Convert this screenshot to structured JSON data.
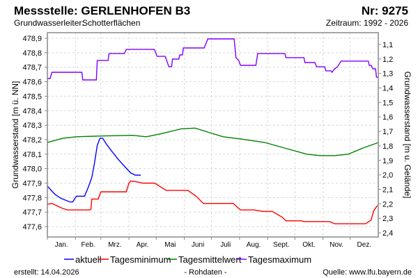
{
  "header": {
    "title": "Messstelle: GERLENHOFEN B3",
    "number": "Nr: 9275",
    "aquifer_label": "Grundwasserleiter:",
    "aquifer_value": "Schotterflächen",
    "period": "Zeitraum: 1992 - 2026"
  },
  "footer": {
    "created": "erstellt:  14.04.2026",
    "raw": "- Rohdaten -",
    "source": "Quelle: www.lfu.bayern.de"
  },
  "colors": {
    "aktuell": "#0000ff",
    "min": "#ff0000",
    "mean": "#008000",
    "max": "#8000ff",
    "source_link": "#0000ff"
  },
  "chart_data": {
    "type": "line",
    "ylabel": "Grundwasserstand [m ü. NN]",
    "ylabel_right": "Grundwasserstand [m u. Gelände]",
    "ylim": [
      477.53,
      478.94
    ],
    "reference_elevation": 479.957,
    "yticks": [
      "477,6",
      "477,7",
      "477,8",
      "477,9",
      "478,0",
      "478,1",
      "478,2",
      "478,3",
      "478,4",
      "478,5",
      "478,6",
      "478,7",
      "478,8",
      "478,9"
    ],
    "yticks_right": [
      "1,1",
      "1,2",
      "1,3",
      "1,4",
      "1,5",
      "1,6",
      "1,7",
      "1,8",
      "1,9",
      "2,0",
      "2,1",
      "2,2",
      "2,3",
      "2,4"
    ],
    "x_unit": "day of year",
    "xlim": [
      0,
      365
    ],
    "months": [
      "Jan.",
      "Feb.",
      "Mrz.",
      "Apr.",
      "Mai",
      "Juni",
      "Juli",
      "Aug.",
      "Sept.",
      "Okt.",
      "Nov.",
      "Dez."
    ],
    "grid": true,
    "legend_position": "bottom",
    "series": [
      {
        "key": "aktuell",
        "name": "aktuell",
        "points": [
          [
            0,
            477.88
          ],
          [
            5,
            477.845
          ],
          [
            9,
            477.82
          ],
          [
            15,
            477.795
          ],
          [
            21,
            477.78
          ],
          [
            25,
            477.77
          ],
          [
            28,
            477.77
          ],
          [
            32,
            477.81
          ],
          [
            38,
            477.81
          ],
          [
            41,
            477.81
          ],
          [
            45,
            477.87
          ],
          [
            49,
            477.94
          ],
          [
            52,
            478.04
          ],
          [
            55,
            478.16
          ],
          [
            58,
            478.21
          ],
          [
            61,
            478.21
          ],
          [
            65,
            478.17
          ],
          [
            71,
            478.12
          ],
          [
            78,
            478.065
          ],
          [
            86,
            478.01
          ],
          [
            92,
            477.97
          ],
          [
            97,
            477.955
          ],
          [
            103,
            477.955
          ]
        ]
      },
      {
        "key": "min",
        "name": "Tagesminimum",
        "points": [
          [
            0,
            477.754
          ],
          [
            5,
            477.76
          ],
          [
            17,
            477.725
          ],
          [
            22,
            477.715
          ],
          [
            47,
            477.715
          ],
          [
            48,
            477.72
          ],
          [
            49,
            477.79
          ],
          [
            56,
            477.79
          ],
          [
            59,
            477.84
          ],
          [
            87,
            477.84
          ],
          [
            90,
            477.9
          ],
          [
            92,
            477.915
          ],
          [
            98,
            477.91
          ],
          [
            105,
            477.9
          ],
          [
            118,
            477.9
          ],
          [
            121,
            477.89
          ],
          [
            126,
            477.87
          ],
          [
            131,
            477.85
          ],
          [
            155,
            477.85
          ],
          [
            164,
            477.81
          ],
          [
            172,
            477.76
          ],
          [
            205,
            477.76
          ],
          [
            213,
            477.715
          ],
          [
            228,
            477.715
          ],
          [
            238,
            477.705
          ],
          [
            248,
            477.705
          ],
          [
            259,
            477.665
          ],
          [
            263,
            477.64
          ],
          [
            280,
            477.64
          ],
          [
            283,
            477.635
          ],
          [
            311,
            477.635
          ],
          [
            317,
            477.62
          ],
          [
            351,
            477.62
          ],
          [
            357,
            477.645
          ],
          [
            360,
            477.71
          ],
          [
            364,
            477.745
          ]
        ]
      },
      {
        "key": "mean",
        "name": "Tagesmittelwert",
        "points": [
          [
            0,
            478.18
          ],
          [
            17,
            478.21
          ],
          [
            32,
            478.22
          ],
          [
            59,
            478.225
          ],
          [
            94,
            478.23
          ],
          [
            109,
            478.22
          ],
          [
            125,
            478.24
          ],
          [
            148,
            478.275
          ],
          [
            163,
            478.28
          ],
          [
            178,
            478.25
          ],
          [
            194,
            478.22
          ],
          [
            213,
            478.205
          ],
          [
            240,
            478.18
          ],
          [
            263,
            478.14
          ],
          [
            286,
            478.1
          ],
          [
            301,
            478.09
          ],
          [
            317,
            478.09
          ],
          [
            332,
            478.1
          ],
          [
            347,
            478.14
          ],
          [
            365,
            478.18
          ]
        ]
      },
      {
        "key": "max",
        "name": "Tagesmaximum",
        "points": [
          [
            0,
            478.622
          ],
          [
            3,
            478.622
          ],
          [
            5,
            478.665
          ],
          [
            38,
            478.665
          ],
          [
            39,
            478.612
          ],
          [
            54,
            478.612
          ],
          [
            55,
            478.747
          ],
          [
            67,
            478.747
          ],
          [
            68,
            478.794
          ],
          [
            85,
            478.794
          ],
          [
            87,
            478.823
          ],
          [
            118,
            478.823
          ],
          [
            121,
            478.775
          ],
          [
            130,
            478.775
          ],
          [
            134,
            478.703
          ],
          [
            137,
            478.703
          ],
          [
            138,
            478.756
          ],
          [
            145,
            478.756
          ],
          [
            146,
            478.785
          ],
          [
            149,
            478.785
          ],
          [
            150,
            478.833
          ],
          [
            173,
            478.833
          ],
          [
            177,
            478.895
          ],
          [
            206,
            478.895
          ],
          [
            208,
            478.766
          ],
          [
            211,
            478.747
          ],
          [
            213,
            478.713
          ],
          [
            230,
            478.713
          ],
          [
            232,
            478.794
          ],
          [
            262,
            478.794
          ],
          [
            263,
            478.766
          ],
          [
            283,
            478.766
          ],
          [
            284,
            478.732
          ],
          [
            295,
            478.732
          ],
          [
            297,
            478.703
          ],
          [
            306,
            478.703
          ],
          [
            307,
            478.675
          ],
          [
            313,
            478.675
          ],
          [
            314,
            478.665
          ],
          [
            317,
            478.69
          ],
          [
            320,
            478.703
          ],
          [
            324,
            478.742
          ],
          [
            354,
            478.742
          ],
          [
            355,
            478.713
          ],
          [
            357,
            478.713
          ],
          [
            359,
            478.689
          ],
          [
            362,
            478.689
          ],
          [
            363,
            478.631
          ],
          [
            365,
            478.631
          ]
        ]
      }
    ]
  }
}
